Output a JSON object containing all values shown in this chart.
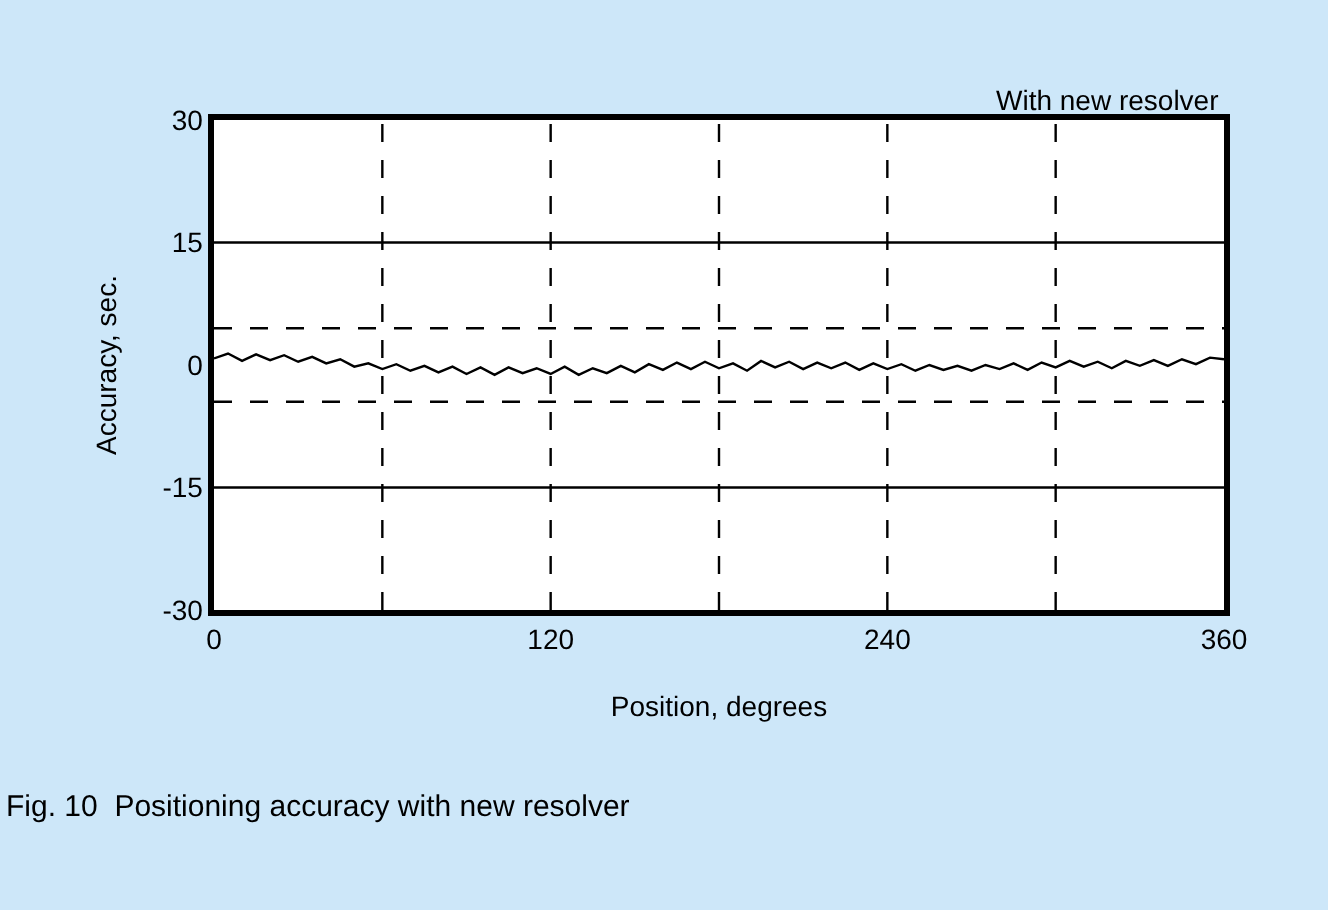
{
  "chart_data": {
    "type": "line",
    "xlabel": "Position, degrees",
    "ylabel": "Accuracy, sec.",
    "annotations": [
      "With new resolver",
      "Fig. 10  Positioning accuracy with new resolver"
    ],
    "xlim": [
      0,
      360
    ],
    "xticks": [
      0,
      120,
      240,
      360
    ],
    "ylim": [
      -30,
      30
    ],
    "yticks": [
      -30,
      -15,
      0,
      15,
      30
    ],
    "grid": false,
    "marker": "none",
    "line_style": "solid",
    "x": [
      0,
      5,
      10,
      15,
      20,
      25,
      30,
      35,
      40,
      45,
      50,
      55,
      60,
      65,
      70,
      75,
      80,
      85,
      90,
      95,
      100,
      105,
      110,
      115,
      120,
      125,
      130,
      135,
      140,
      145,
      150,
      155,
      160,
      165,
      170,
      175,
      180,
      185,
      190,
      195,
      200,
      205,
      210,
      215,
      220,
      225,
      230,
      235,
      240,
      245,
      250,
      255,
      260,
      265,
      270,
      275,
      280,
      285,
      290,
      295,
      300,
      305,
      310,
      315,
      320,
      325,
      330,
      335,
      340,
      345,
      350,
      355,
      360
    ],
    "series": [
      {
        "color": "#000000",
        "values": [
          0.8,
          1.4,
          0.5,
          1.3,
          0.6,
          1.2,
          0.4,
          1.0,
          0.2,
          0.7,
          -0.2,
          0.2,
          -0.5,
          0.1,
          -0.7,
          -0.1,
          -0.9,
          -0.2,
          -1.1,
          -0.3,
          -1.2,
          -0.3,
          -1.0,
          -0.4,
          -1.1,
          -0.2,
          -1.2,
          -0.4,
          -1.0,
          -0.1,
          -0.9,
          0.1,
          -0.6,
          0.3,
          -0.5,
          0.4,
          -0.4,
          0.2,
          -0.7,
          0.5,
          -0.3,
          0.4,
          -0.5,
          0.3,
          -0.4,
          0.3,
          -0.6,
          0.2,
          -0.5,
          0.1,
          -0.7,
          0.0,
          -0.6,
          -0.1,
          -0.7,
          0.0,
          -0.5,
          0.2,
          -0.6,
          0.3,
          -0.3,
          0.5,
          -0.2,
          0.4,
          -0.4,
          0.5,
          -0.1,
          0.6,
          -0.1,
          0.7,
          0.1,
          0.9,
          0.7
        ]
      }
    ],
    "ref_lines": [
      {
        "axis": "x",
        "value": 60,
        "line_style": "dashed"
      },
      {
        "axis": "x",
        "value": 120,
        "line_style": "dashed"
      },
      {
        "axis": "x",
        "value": 180,
        "line_style": "dashed"
      },
      {
        "axis": "x",
        "value": 240,
        "line_style": "dashed"
      },
      {
        "axis": "x",
        "value": 300,
        "line_style": "dashed"
      },
      {
        "axis": "y",
        "value": 15,
        "line_style": "solid"
      },
      {
        "axis": "y",
        "value": -15,
        "line_style": "solid"
      },
      {
        "axis": "y",
        "value": 4.5,
        "line_style": "dashed"
      },
      {
        "axis": "y",
        "value": -4.5,
        "line_style": "dashed"
      }
    ]
  }
}
